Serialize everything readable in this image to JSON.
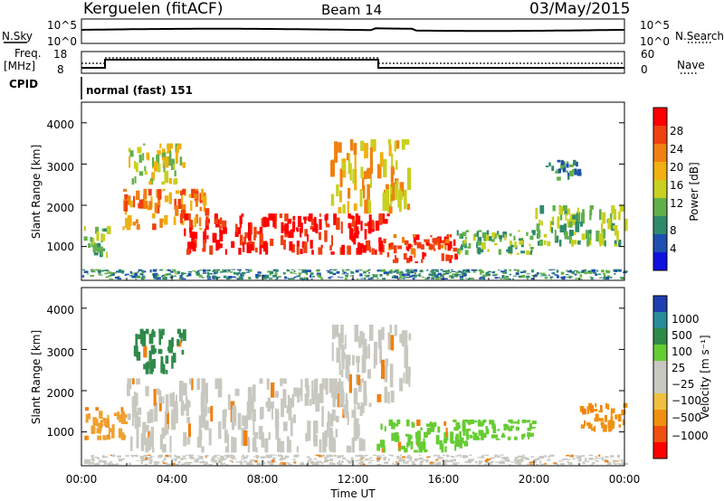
{
  "header": {
    "station": "Kerguelen (fitACF)",
    "beam": "Beam 14",
    "date": "03/May/2015"
  },
  "summary_panels": {
    "nsky_label": "N.Sky",
    "nsky_ticks": [
      "10^5",
      "10^0"
    ],
    "nsearch_label": "N.Search",
    "nsearch_ticks": [
      "10^5",
      "10^0"
    ],
    "freq_label": "Freq.",
    "freq_unit": "[MHz]",
    "freq_ticks": [
      "18",
      "8"
    ],
    "nave_label": "Nave",
    "nave_ticks": [
      "60",
      "0"
    ],
    "cpid_label": "CPID",
    "cpid_text": "normal (fast) 151"
  },
  "x_axis": {
    "title": "Time UT",
    "ticks": [
      "00:00",
      "04:00",
      "08:00",
      "12:00",
      "16:00",
      "20:00",
      "00:00"
    ]
  },
  "chart_data": [
    {
      "type": "heatmap",
      "title": "",
      "xlabel": "Time UT",
      "ylabel": "Slant Range [km]",
      "y_ticks": [
        "1000",
        "2000",
        "3000",
        "4000"
      ],
      "xlim_hours": [
        0,
        24
      ],
      "ylim_km": [
        180,
        4500
      ],
      "colorbar": {
        "label": "Power [dB]",
        "ticks": [
          "4",
          "8",
          "12",
          "16",
          "20",
          "24",
          "28"
        ],
        "colors": [
          "#1010e0",
          "#1e50b0",
          "#2f8a6a",
          "#62b04a",
          "#c8d020",
          "#f0b010",
          "#f08010",
          "#f04010",
          "#ff0000"
        ]
      },
      "echo_regions": [
        {
          "t0": 0.1,
          "t1": 1.2,
          "r0": 700,
          "r1": 1500,
          "level": 3
        },
        {
          "t0": 1.8,
          "t1": 5.5,
          "r0": 1400,
          "r1": 2400,
          "level": 6
        },
        {
          "t0": 2.0,
          "t1": 4.5,
          "r0": 2500,
          "r1": 3500,
          "level": 4
        },
        {
          "t0": 4.5,
          "t1": 13.5,
          "r0": 800,
          "r1": 1800,
          "level": 8
        },
        {
          "t0": 11.0,
          "t1": 14.5,
          "r0": 1800,
          "r1": 3600,
          "level": 5
        },
        {
          "t0": 13.5,
          "t1": 16.5,
          "r0": 600,
          "r1": 1300,
          "level": 7
        },
        {
          "t0": 16.5,
          "t1": 20.0,
          "r0": 800,
          "r1": 1400,
          "level": 3
        },
        {
          "t0": 20.0,
          "t1": 24.0,
          "r0": 1000,
          "r1": 2000,
          "level": 3
        },
        {
          "t0": 20.5,
          "t1": 22.0,
          "r0": 2600,
          "r1": 3100,
          "level": 2
        },
        {
          "t0": 0.0,
          "t1": 24.0,
          "r0": 200,
          "r1": 450,
          "level": 2
        }
      ]
    },
    {
      "type": "heatmap",
      "title": "",
      "xlabel": "Time UT",
      "ylabel": "Slant Range [km]",
      "y_ticks": [
        "1000",
        "2000",
        "3000",
        "4000"
      ],
      "xlim_hours": [
        0,
        24
      ],
      "ylim_km": [
        180,
        4500
      ],
      "colorbar": {
        "label": "Velocity [m s⁻¹]",
        "ticks": [
          "1000",
          "500",
          "100",
          "25",
          "−25",
          "−100",
          "−500",
          "−1000"
        ],
        "colors": [
          "#1e3fb0",
          "#2a8a9a",
          "#2f8a4a",
          "#66cc33",
          "#c8c8c0",
          "#c8c8c0",
          "#f0c040",
          "#f09010",
          "#f05010",
          "#ff0000"
        ]
      },
      "echo_regions": [
        {
          "t0": 0.1,
          "t1": 2.0,
          "r0": 800,
          "r1": 1600,
          "color": "#f0a030"
        },
        {
          "t0": 2.0,
          "t1": 12.5,
          "r0": 500,
          "r1": 2300,
          "color": "#c8c8c0"
        },
        {
          "t0": 2.3,
          "t1": 4.5,
          "r0": 2400,
          "r1": 3500,
          "color": "#2f8a4a"
        },
        {
          "t0": 11.0,
          "t1": 14.5,
          "r0": 1600,
          "r1": 3600,
          "color": "#c8c8c0"
        },
        {
          "t0": 13.0,
          "t1": 17.0,
          "r0": 500,
          "r1": 1300,
          "color": "#66cc33"
        },
        {
          "t0": 17.0,
          "t1": 20.0,
          "r0": 800,
          "r1": 1300,
          "color": "#66cc33"
        },
        {
          "t0": 22.0,
          "t1": 24.0,
          "r0": 1000,
          "r1": 1700,
          "color": "#f09010"
        },
        {
          "t0": 0.0,
          "t1": 24.0,
          "r0": 200,
          "r1": 450,
          "color": "#c8c8c0"
        }
      ]
    }
  ]
}
